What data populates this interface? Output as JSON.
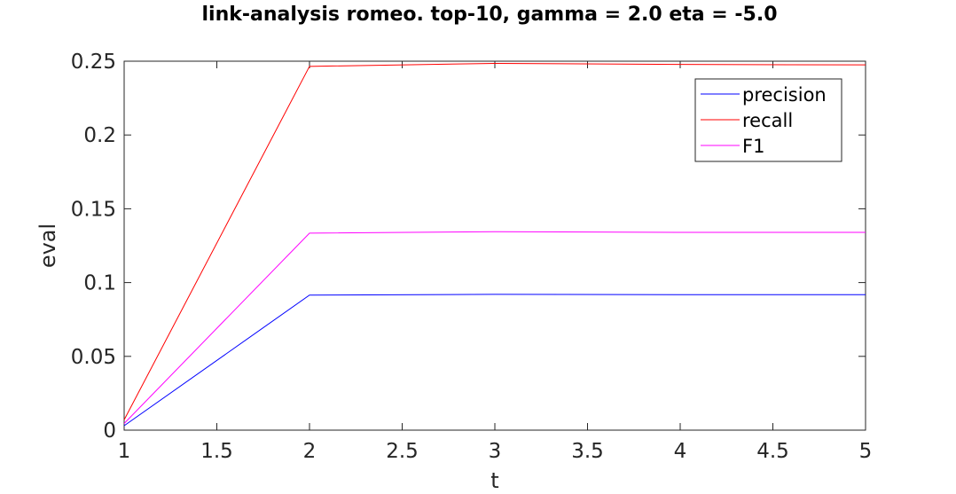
{
  "chart_data": {
    "type": "line",
    "title": "link-analysis romeo. top-10, gamma = 2.0 eta = -5.0",
    "xlabel": "t",
    "ylabel": "eval",
    "x": [
      1,
      2,
      3,
      4,
      5
    ],
    "xlim": [
      1,
      5
    ],
    "ylim": [
      0,
      0.25
    ],
    "xticks": [
      "1",
      "1.5",
      "2",
      "2.5",
      "3",
      "3.5",
      "4",
      "4.5",
      "5"
    ],
    "yticks": [
      "0",
      "0.05",
      "0.1",
      "0.15",
      "0.2",
      "0.25"
    ],
    "grid": false,
    "legend_position": "top-right",
    "series": [
      {
        "name": "precision",
        "color": "#0000ff",
        "values": [
          0.003,
          0.0915,
          0.092,
          0.0918,
          0.0918
        ]
      },
      {
        "name": "recall",
        "color": "#ff0000",
        "values": [
          0.007,
          0.2465,
          0.2485,
          0.2478,
          0.2475
        ]
      },
      {
        "name": "F1",
        "color": "#ff00ff",
        "values": [
          0.0045,
          0.1335,
          0.1345,
          0.134,
          0.134
        ]
      }
    ]
  }
}
